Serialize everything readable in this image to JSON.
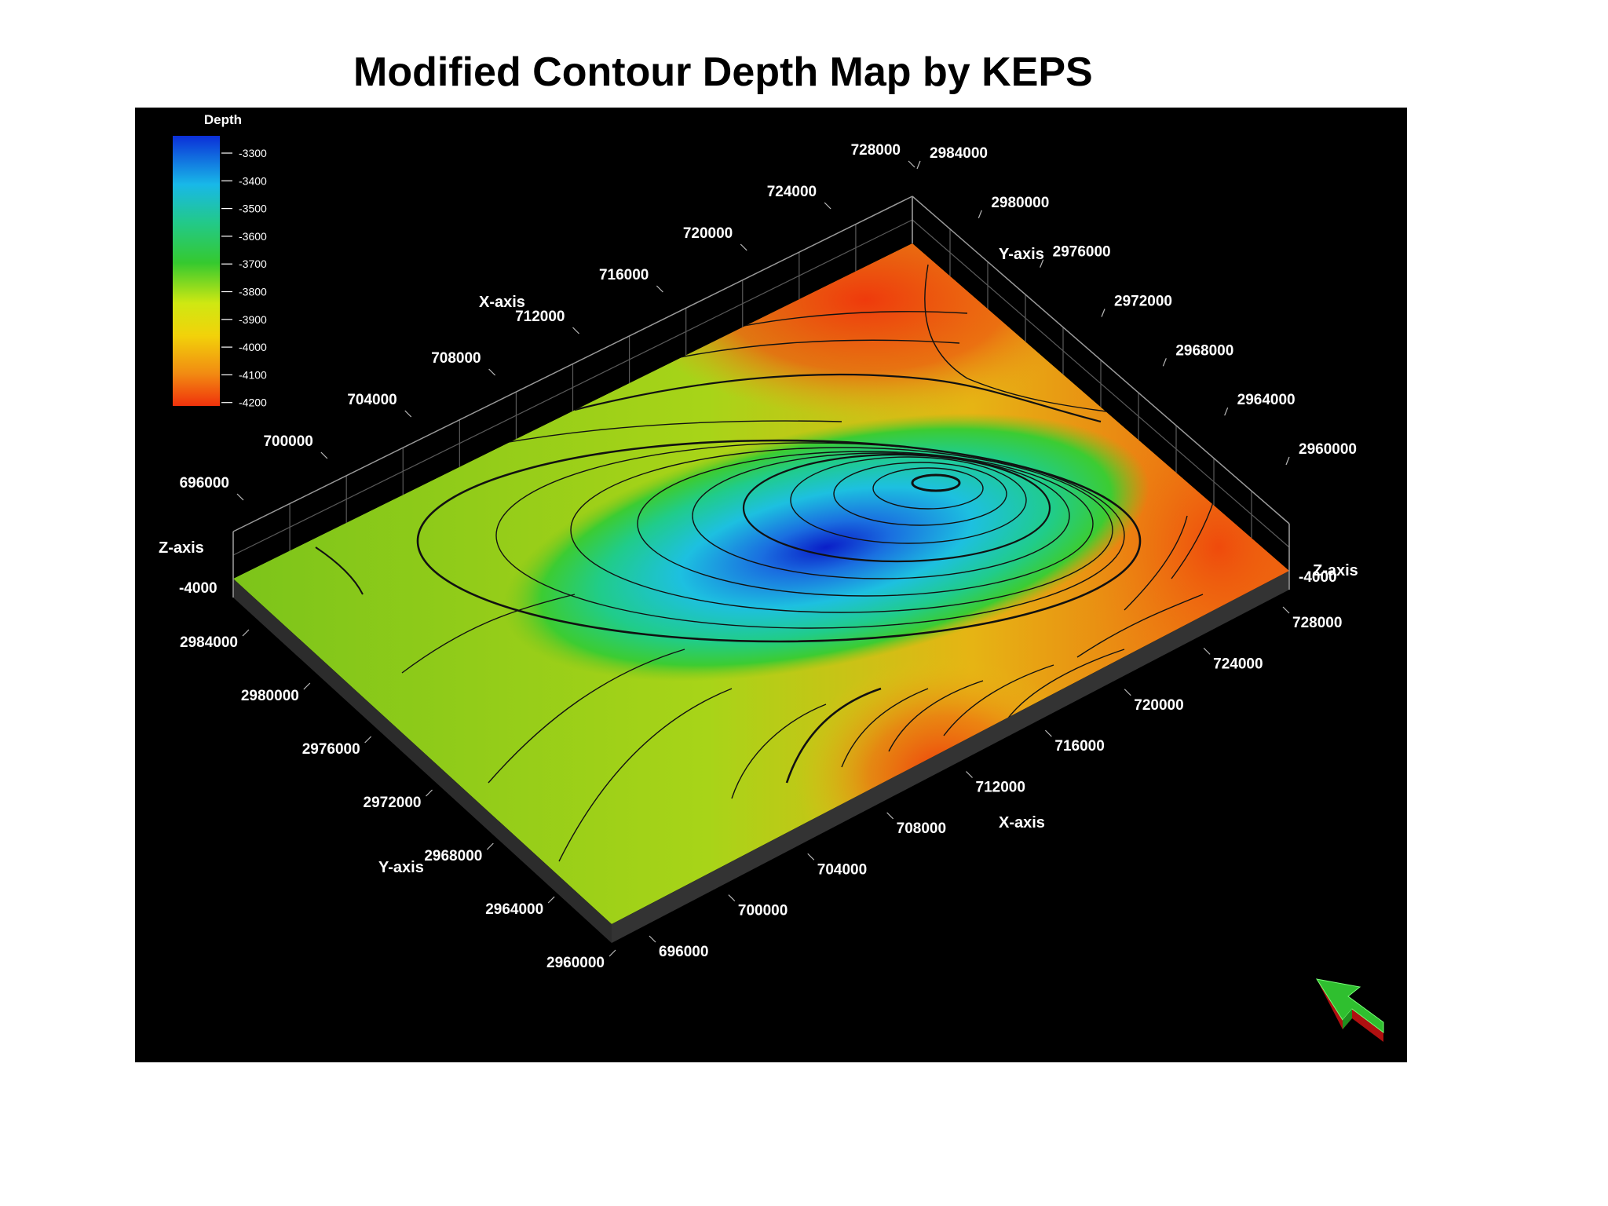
{
  "title": "Modified Contour Depth Map by KEPS",
  "chart_data": {
    "type": "heatmap",
    "title": "Modified Contour Depth Map by KEPS",
    "colorbar": {
      "title": "Depth",
      "ticks": [
        "-3300",
        "-3400",
        "-3500",
        "-3600",
        "-3700",
        "-3800",
        "-3900",
        "-4000",
        "-4100",
        "-4200"
      ],
      "range": [
        -4200,
        -3300
      ],
      "colors": [
        "#0b2fd8",
        "#18b8e8",
        "#22c98a",
        "#35c92f",
        "#cfe812",
        "#f2d20a",
        "#f28b12",
        "#f0320c"
      ]
    },
    "x_axis": {
      "label": "X-axis",
      "ticks": [
        "696000",
        "700000",
        "704000",
        "708000",
        "712000",
        "716000",
        "720000",
        "724000",
        "728000"
      ]
    },
    "y_axis": {
      "label": "Y-axis",
      "ticks": [
        "2960000",
        "2964000",
        "2968000",
        "2972000",
        "2976000",
        "2980000",
        "2984000"
      ]
    },
    "z_axis": {
      "label": "Z-axis",
      "tick": "-4000"
    },
    "minimum_depth_approx": -3300,
    "maximum_depth_approx": -4200
  },
  "navigation_arrow_icon": "3d-arrow-icon"
}
